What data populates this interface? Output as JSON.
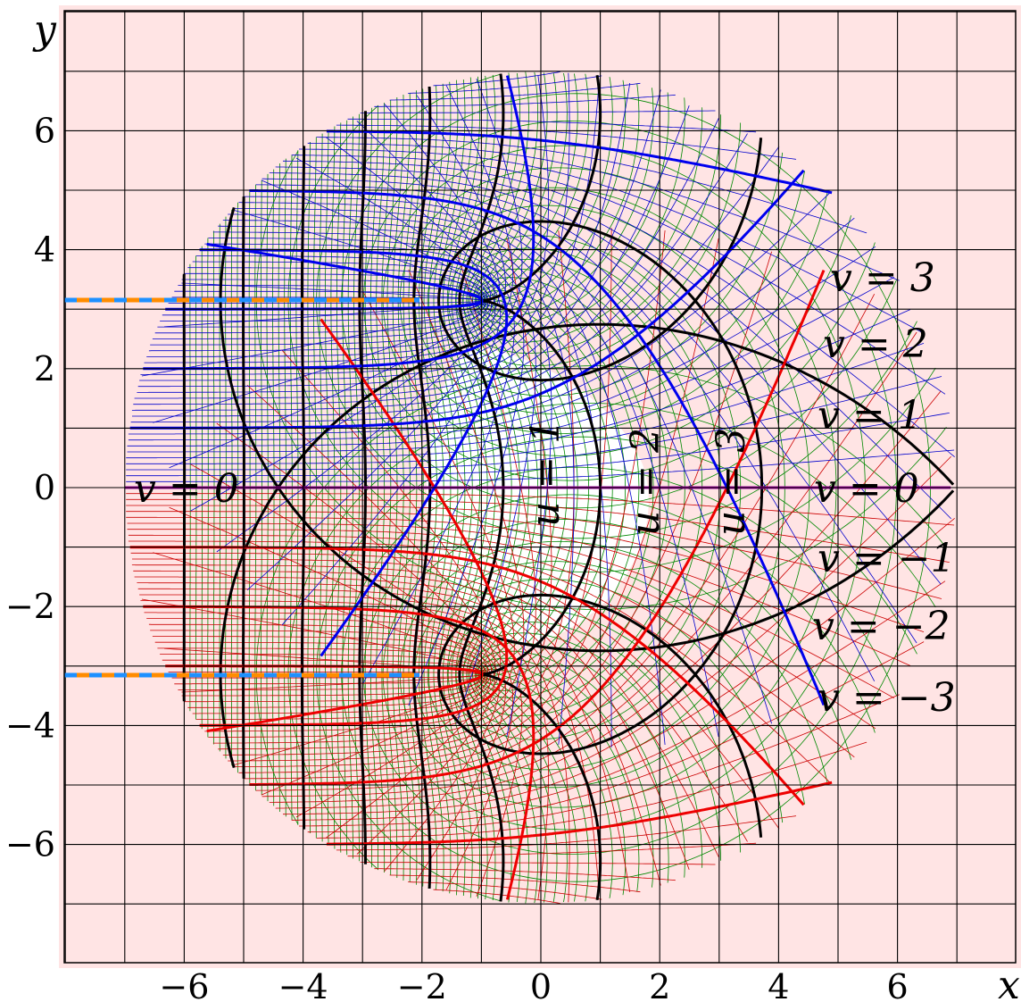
{
  "colors": {
    "background": "#ffe4e4",
    "inner_region": "#ffffff",
    "grid": "#000000",
    "u_lines_major": "#000000",
    "v_positive": "#0000ee",
    "v_negative": "#ee0000",
    "v_zero": "#990099",
    "fine_u": "#008800",
    "fine_v_positive": "#0000cc",
    "fine_v_negative": "#cc0000",
    "cut_blue": "#1e90ff",
    "cut_orange": "#ff8c00"
  },
  "axes": {
    "x_label": "x",
    "y_label": "y",
    "x_ticks": [
      {
        "value": -6,
        "label": "−6"
      },
      {
        "value": -4,
        "label": "−4"
      },
      {
        "value": -2,
        "label": "−2"
      },
      {
        "value": 0,
        "label": "0"
      },
      {
        "value": 2,
        "label": "2"
      },
      {
        "value": 4,
        "label": "4"
      },
      {
        "value": 6,
        "label": "6"
      }
    ],
    "y_ticks": [
      {
        "value": 6,
        "label": "6"
      },
      {
        "value": 4,
        "label": "4"
      },
      {
        "value": 2,
        "label": "2"
      },
      {
        "value": 0,
        "label": "0"
      },
      {
        "value": -2,
        "label": "−2"
      },
      {
        "value": -4,
        "label": "−4"
      },
      {
        "value": -6,
        "label": "−6"
      }
    ],
    "x_range": [
      -8,
      8
    ],
    "y_range": [
      -8,
      8
    ],
    "grid": true
  },
  "curve_labels": {
    "v_pos3": "v = 3",
    "v_pos2": "v = 2",
    "v_pos1": "v = 1",
    "v_zero_right": "v = 0",
    "v_zero_left": "v = 0",
    "v_neg1": "v = −1",
    "v_neg2": "v = −2",
    "v_neg3": "v = −3",
    "u1": "u = 1",
    "u2": "u = 2",
    "u3": "u = 3"
  },
  "branch_cuts": [
    {
      "y": 3.14159
    },
    {
      "y": -3.14159
    }
  ]
}
